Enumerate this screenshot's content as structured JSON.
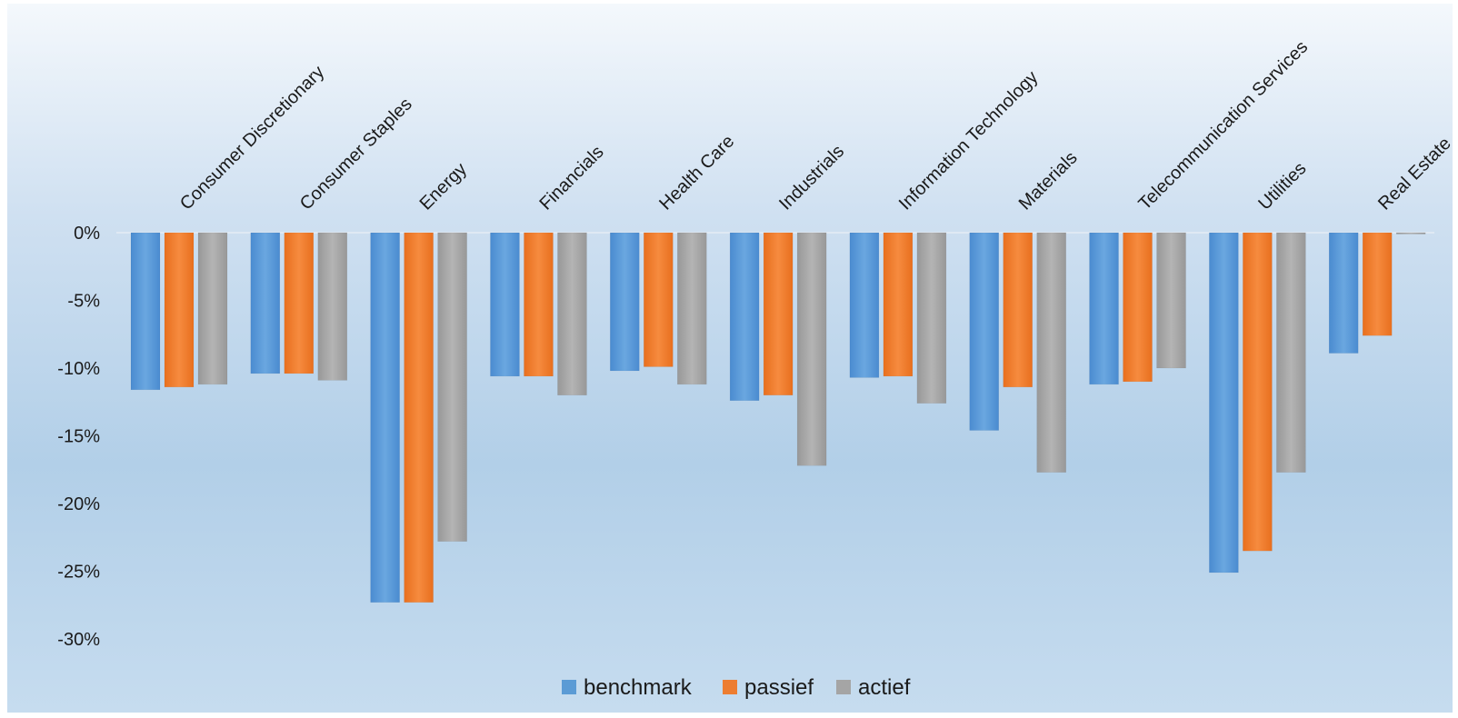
{
  "chart_data": {
    "type": "bar",
    "categories": [
      "Consumer Discretionary",
      "Consumer Staples",
      "Energy",
      "Financials",
      "Health Care",
      "Industrials",
      "Information Technology",
      "Materials",
      "Telecommunication Services",
      "Utilities",
      "Real Estate"
    ],
    "series": [
      {
        "name": "benchmark",
        "color": "#5b9bd5",
        "values": [
          -11.6,
          -10.4,
          -27.3,
          -10.6,
          -10.2,
          -12.4,
          -10.7,
          -14.6,
          -11.2,
          -25.1,
          -8.9
        ]
      },
      {
        "name": "passief",
        "color": "#ed7d31",
        "values": [
          -11.4,
          -10.4,
          -27.3,
          -10.6,
          -9.9,
          -12.0,
          -10.6,
          -11.4,
          -11.0,
          -23.5,
          -7.6
        ]
      },
      {
        "name": "actief",
        "color": "#a5a5a5",
        "values": [
          -11.2,
          -10.9,
          -22.8,
          -12.0,
          -11.2,
          -17.2,
          -12.6,
          -17.7,
          -10.0,
          -17.7,
          -0.1
        ]
      }
    ],
    "ylim": [
      -30,
      0
    ],
    "yticks": [
      0,
      -5,
      -10,
      -15,
      -20,
      -25,
      -30
    ],
    "ytick_labels": [
      "0%",
      "-5%",
      "-10%",
      "-15%",
      "-20%",
      "-25%",
      "-30%"
    ],
    "grid": false,
    "legend_position": "bottom",
    "title": "",
    "xlabel": "",
    "ylabel": ""
  }
}
